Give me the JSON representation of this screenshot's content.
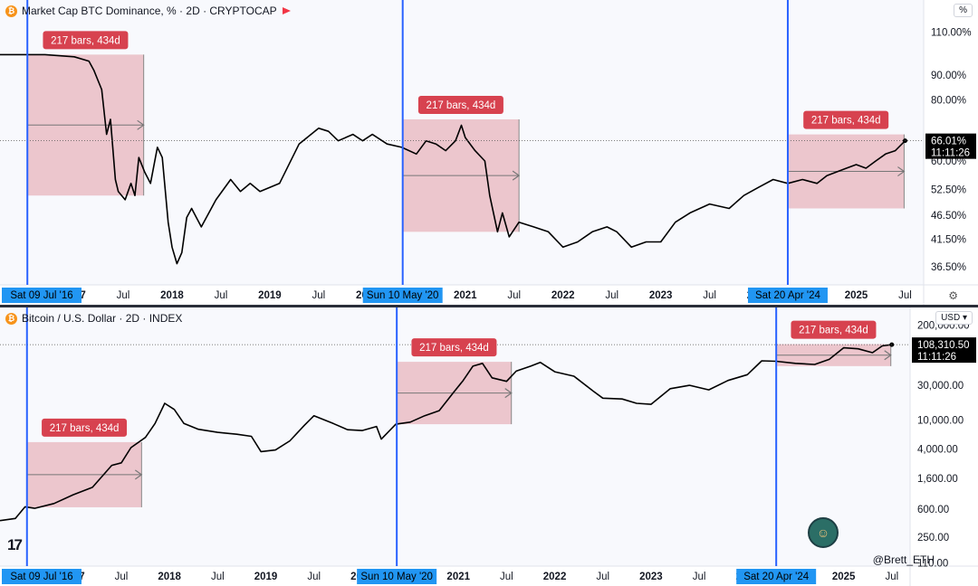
{
  "chart_data": [
    {
      "type": "line",
      "title": "Market Cap BTC Dominance, % · 2D · CRYPTOCAP",
      "scale": "log",
      "unit_label": "%",
      "y_tick_labels": [
        "110.00%",
        "90.00%",
        "80.00%",
        "60.00%",
        "52.50%",
        "46.50%",
        "41.50%",
        "36.50%"
      ],
      "y_ticks": [
        110,
        90,
        80,
        60,
        52.5,
        46.5,
        41.5,
        36.5
      ],
      "ylim": [
        33.5,
        128
      ],
      "x_range": [
        2016.24,
        2025.69
      ],
      "x_tick_labels": [
        "2017",
        "Jul",
        "2018",
        "Jul",
        "2019",
        "Jul",
        "2020",
        "2021",
        "Jul",
        "2022",
        "Jul",
        "2023",
        "Jul",
        "2024",
        "2025",
        "Jul"
      ],
      "x_ticks": [
        2017.0,
        2017.5,
        2018.0,
        2018.5,
        2019.0,
        2019.5,
        2020.0,
        2021.0,
        2021.5,
        2022.0,
        2022.5,
        2023.0,
        2023.5,
        2024.0,
        2025.0,
        2025.5
      ],
      "last_value_label": "66.01%",
      "countdown": "11:11:26",
      "series": [
        {
          "x": [
            2016.24,
            2016.5,
            2016.7,
            2017.0,
            2017.15,
            2017.2,
            2017.28,
            2017.33,
            2017.37,
            2017.42,
            2017.45,
            2017.52,
            2017.58,
            2017.62,
            2017.66,
            2017.72,
            2017.78,
            2017.85,
            2017.9,
            2017.96,
            2018.0,
            2018.05,
            2018.1,
            2018.15,
            2018.2,
            2018.3,
            2018.45,
            2018.6,
            2018.7,
            2018.8,
            2018.9,
            2019.1,
            2019.3,
            2019.5,
            2019.6,
            2019.7,
            2019.85,
            2019.95,
            2020.05,
            2020.2,
            2020.35,
            2020.5,
            2020.6,
            2020.7,
            2020.8,
            2020.9,
            2020.96,
            2021.0,
            2021.1,
            2021.2,
            2021.25,
            2021.33,
            2021.38,
            2021.45,
            2021.55,
            2021.7,
            2021.85,
            2022.0,
            2022.15,
            2022.3,
            2022.45,
            2022.55,
            2022.7,
            2022.85,
            2023.0,
            2023.15,
            2023.3,
            2023.5,
            2023.7,
            2023.85,
            2024.0,
            2024.15,
            2024.3,
            2024.45,
            2024.6,
            2024.7,
            2024.8,
            2024.9,
            2025.0,
            2025.1,
            2025.2,
            2025.3,
            2025.4,
            2025.5
          ],
          "values": [
            99,
            99,
            99,
            98,
            96,
            92,
            84,
            68,
            73,
            55,
            52,
            50,
            54,
            51,
            61,
            57,
            54,
            64,
            61,
            45,
            40,
            37,
            39,
            46,
            48,
            44,
            50,
            55,
            52,
            54,
            52,
            54,
            65,
            70,
            69,
            66,
            68,
            66,
            68,
            65,
            64,
            62,
            66,
            65,
            63,
            66,
            71,
            67,
            63,
            60,
            51,
            43,
            47,
            42,
            45,
            44,
            43,
            40,
            41,
            43,
            44,
            43,
            40,
            41,
            41,
            45,
            47,
            49,
            48,
            51,
            53,
            55,
            54,
            55,
            54,
            56,
            57,
            58,
            59,
            58,
            60,
            62,
            63,
            66
          ]
        }
      ],
      "range_annotations": [
        {
          "label": "217 bars, 434d",
          "start_date_label": "Sat 09 Jul '16",
          "x_start": 2016.52,
          "x_end": 2017.71,
          "y_top": 99,
          "y_bottom": 51
        },
        {
          "label": "217 bars, 434d",
          "start_date_label": "Sun 10 May '20",
          "x_start": 2020.36,
          "x_end": 2021.55,
          "y_top": 73,
          "y_bottom": 43
        },
        {
          "label": "217 bars, 434d",
          "start_date_label": "Sat 20 Apr '24",
          "x_start": 2024.3,
          "x_end": 2025.49,
          "y_top": 68,
          "y_bottom": 48
        }
      ]
    },
    {
      "type": "line",
      "title": "Bitcoin / U.S. Dollar · 2D · INDEX",
      "scale": "log",
      "unit_label": "USD",
      "y_tick_labels": [
        "200,000.00",
        "30,000.00",
        "10,000.00",
        "4,000.00",
        "1,600.00",
        "600.00",
        "250.00",
        "110.00"
      ],
      "y_ticks": [
        200000,
        30000,
        10000,
        4000,
        1600,
        600,
        250,
        110
      ],
      "ylim": [
        100,
        350000
      ],
      "x_range": [
        2016.24,
        2025.69
      ],
      "x_tick_labels": [
        "2017",
        "Jul",
        "2018",
        "Jul",
        "2019",
        "Jul",
        "2020",
        "2021",
        "Jul",
        "2022",
        "Jul",
        "2023",
        "Jul",
        "2024",
        "2025",
        "Jul"
      ],
      "x_ticks": [
        2017.0,
        2017.5,
        2018.0,
        2018.5,
        2019.0,
        2019.5,
        2020.0,
        2021.0,
        2021.5,
        2022.0,
        2022.5,
        2023.0,
        2023.5,
        2024.0,
        2025.0,
        2025.5
      ],
      "last_value_label": "108,310.50",
      "countdown": "11:11:26",
      "series": [
        {
          "x": [
            2016.24,
            2016.4,
            2016.5,
            2016.6,
            2016.8,
            2017.0,
            2017.2,
            2017.4,
            2017.5,
            2017.6,
            2017.75,
            2017.85,
            2017.95,
            2018.05,
            2018.15,
            2018.3,
            2018.5,
            2018.7,
            2018.85,
            2018.95,
            2019.1,
            2019.25,
            2019.4,
            2019.5,
            2019.7,
            2019.85,
            2020.0,
            2020.15,
            2020.2,
            2020.35,
            2020.5,
            2020.65,
            2020.8,
            2020.95,
            2021.05,
            2021.15,
            2021.25,
            2021.35,
            2021.5,
            2021.6,
            2021.75,
            2021.85,
            2022.0,
            2022.2,
            2022.4,
            2022.5,
            2022.7,
            2022.85,
            2023.0,
            2023.2,
            2023.4,
            2023.6,
            2023.8,
            2024.0,
            2024.15,
            2024.3,
            2024.5,
            2024.7,
            2024.85,
            2025.0,
            2025.15,
            2025.3,
            2025.4,
            2025.5
          ],
          "values": [
            420,
            450,
            650,
            620,
            720,
            950,
            1200,
            2400,
            2600,
            4200,
            5800,
            9000,
            17000,
            14000,
            9000,
            7500,
            6800,
            6400,
            6000,
            3700,
            3900,
            5200,
            8500,
            11500,
            9000,
            7400,
            7200,
            8200,
            5500,
            8800,
            9400,
            11500,
            13500,
            24000,
            35000,
            55000,
            60000,
            38000,
            34000,
            47000,
            55000,
            62000,
            46000,
            40000,
            25000,
            20000,
            19500,
            17000,
            16500,
            27000,
            30000,
            26000,
            35000,
            42000,
            65000,
            64000,
            60000,
            58000,
            68000,
            98000,
            95000,
            84000,
            104000,
            108310
          ]
        }
      ],
      "range_annotations": [
        {
          "label": "217 bars, 434d",
          "start_date_label": "Sat 09 Jul '16",
          "x_start": 2016.52,
          "x_end": 2017.71,
          "y_top": 5000,
          "y_bottom": 640
        },
        {
          "label": "217 bars, 434d",
          "start_date_label": "Sun 10 May '20",
          "x_start": 2020.36,
          "x_end": 2021.55,
          "y_top": 63000,
          "y_bottom": 8800
        },
        {
          "label": "217 bars, 434d",
          "start_date_label": "Sat 20 Apr '24",
          "x_start": 2024.3,
          "x_end": 2025.49,
          "y_top": 110000,
          "y_bottom": 55000
        }
      ]
    }
  ],
  "ui": {
    "top_legend_title": "Market Cap BTC Dominance, % · 2D · CRYPTOCAP",
    "bottom_legend_title": "Bitcoin / U.S. Dollar · 2D · INDEX",
    "top_scale_button": "%",
    "bottom_scale_button": "USD",
    "coin_glyph": "₿",
    "settings_icon": "gear-icon",
    "tv_logo": "17",
    "watermark": "@Brett_ETH"
  },
  "colors": {
    "line": "#000000",
    "range_fill": "#e8b4bc",
    "range_stroke": "#e06b77",
    "range_label_bg": "#d7424f",
    "vline": "#2962ff",
    "date_label_bg": "#2196f3",
    "axis_text": "#131722"
  }
}
